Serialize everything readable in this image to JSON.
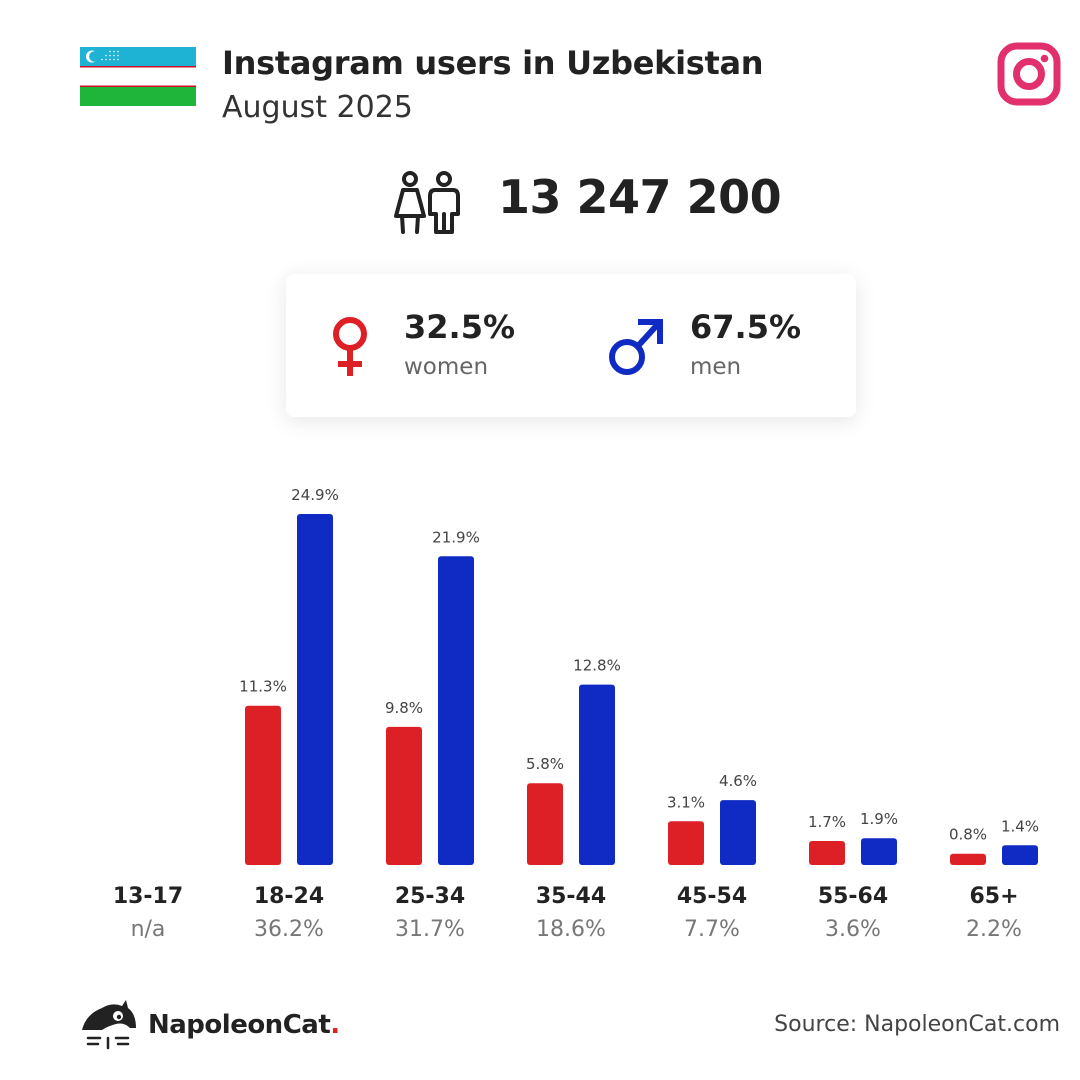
{
  "header": {
    "title": "Instagram users in Uzbekistan",
    "subtitle": "August 2025"
  },
  "summary": {
    "total_users": "13 247 200",
    "women": {
      "percent": "32.5%",
      "label": "women"
    },
    "men": {
      "percent": "67.5%",
      "label": "men"
    }
  },
  "colors": {
    "women": "#dd1f26",
    "men": "#0f2bc3",
    "instagram": "#e1306c",
    "flag_blue": "#1eb3d5",
    "flag_green": "#1eb53a",
    "flag_red": "#ce1126"
  },
  "icons": [
    "uzbekistan-flag",
    "instagram-icon",
    "users-icon",
    "female-icon",
    "male-icon",
    "napoleoncat-logo-icon"
  ],
  "chart_data": {
    "type": "bar",
    "categories": [
      "13-17",
      "18-24",
      "25-34",
      "35-44",
      "45-54",
      "55-64",
      "65+"
    ],
    "category_totals": [
      "n/a",
      "36.2%",
      "31.7%",
      "18.6%",
      "7.7%",
      "3.6%",
      "2.2%"
    ],
    "series": [
      {
        "name": "women",
        "values": [
          null,
          11.3,
          9.8,
          5.8,
          3.1,
          1.7,
          0.8
        ],
        "labels": [
          "",
          "11.3%",
          "9.8%",
          "5.8%",
          "3.1%",
          "1.7%",
          "0.8%"
        ]
      },
      {
        "name": "men",
        "values": [
          null,
          24.9,
          21.9,
          12.8,
          4.6,
          1.9,
          1.4
        ],
        "labels": [
          "",
          "24.9%",
          "21.9%",
          "12.8%",
          "4.6%",
          "1.9%",
          "1.4%"
        ]
      }
    ],
    "ylim": [
      0,
      24.9
    ],
    "grid": false
  },
  "footer": {
    "brand": "NapoleonCat",
    "brand_dot": ".",
    "source": "Source: NapoleonCat.com"
  }
}
